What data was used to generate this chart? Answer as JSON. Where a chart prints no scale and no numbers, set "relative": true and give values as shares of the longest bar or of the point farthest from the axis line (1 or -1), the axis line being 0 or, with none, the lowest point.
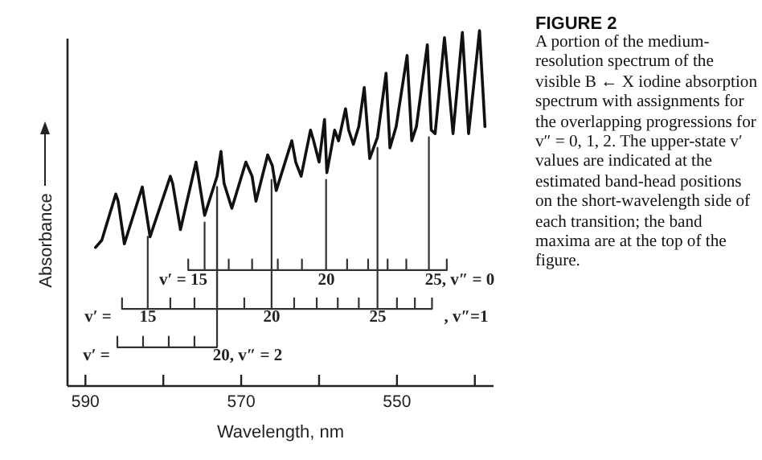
{
  "chart_data": {
    "type": "line",
    "relative": true,
    "title": "FIGURE 2",
    "subtitle": "A portion of the medium-resolution spectrum of the visible B ← X iodine absorption spectrum with assignments for the overlapping progressions for v″ = 0, 1, 2. The upper-state v′ values are indicated at the estimated band-head positions on the short-wavelength side of each transition; the band maxima are at the top of the figure.",
    "xlabel": "Wavelength, nm",
    "ylabel": "Absorbance",
    "xlim": [
      592.3,
      537.6
    ],
    "xticks": [
      590,
      {
        "value": 580,
        "label": null
      },
      570,
      {
        "value": 560,
        "label": null
      },
      550,
      {
        "value": 540,
        "label": null
      }
    ],
    "series": [
      {
        "color": "#111111",
        "x": [
          588.7,
          587.9,
          586.1,
          585.8,
          585.0,
          582.7,
          581.7,
          579.1,
          578.8,
          577.8,
          575.8,
          575.5,
          574.7,
          573.1,
          572.6,
          572.2,
          571.2,
          569.4,
          568.6,
          568.1,
          566.6,
          566.0,
          565.5,
          563.5,
          563.0,
          562.3,
          561.1,
          560.7,
          560.0,
          559.3,
          559.0,
          558.0,
          557.5,
          556.6,
          556.2,
          555.6,
          554.9,
          554.2,
          553.5,
          552.5,
          551.4,
          550.9,
          550.1,
          548.7,
          548.1,
          547.5,
          546.1,
          545.6,
          545.1,
          543.9,
          542.8,
          541.6,
          540.8,
          539.4,
          538.7
        ],
        "values": [
          0.39,
          0.41,
          0.54,
          0.52,
          0.4,
          0.56,
          0.42,
          0.59,
          0.57,
          0.44,
          0.63,
          0.59,
          0.48,
          0.59,
          0.66,
          0.57,
          0.5,
          0.63,
          0.59,
          0.52,
          0.65,
          0.62,
          0.55,
          0.69,
          0.63,
          0.59,
          0.72,
          0.69,
          0.63,
          0.75,
          0.6,
          0.72,
          0.69,
          0.78,
          0.72,
          0.68,
          0.73,
          0.84,
          0.64,
          0.7,
          0.88,
          0.67,
          0.73,
          0.93,
          0.69,
          0.73,
          0.96,
          0.72,
          0.71,
          0.98,
          0.71,
          0.995,
          0.71,
          1.0,
          0.73
        ]
      },
      {
        "color": "#333333",
        "x": [
          576.8,
          576.8,
          576.8,
          574.7,
          574.7,
          574.7,
          571.6,
          571.6,
          571.6,
          568.6,
          568.6,
          568.6,
          565.3,
          565.3,
          565.3,
          562.2,
          562.2,
          562.2,
          559.1,
          559.1,
          559.1,
          556.4,
          556.4,
          556.4,
          553.7,
          553.7,
          553.7,
          551.2,
          551.2,
          551.2,
          548.8,
          548.8,
          548.8,
          545.9,
          545.9,
          545.9,
          543.6,
          543.6,
          543.6
        ],
        "values": [
          0.326,
          0.356,
          0.326,
          0.326,
          0.46,
          0.326,
          0.326,
          0.356,
          0.326,
          0.326,
          0.356,
          0.326,
          0.326,
          0.356,
          0.326,
          0.326,
          0.356,
          0.326,
          0.326,
          0.58,
          0.326,
          0.326,
          0.356,
          0.326,
          0.326,
          0.356,
          0.326,
          0.326,
          0.356,
          0.326,
          0.326,
          0.356,
          0.326,
          0.326,
          0.7,
          0.326,
          0.326,
          0.356,
          0.326
        ]
      },
      {
        "color": "#333333",
        "x": [
          585.3,
          585.3,
          585.3,
          582.0,
          582.0,
          582.0,
          579.1,
          579.1,
          579.1,
          576.0,
          576.0,
          576.0,
          573.1,
          573.1,
          573.1,
          569.6,
          569.6,
          569.6,
          566.1,
          566.1,
          566.1,
          563.2,
          563.2,
          563.2,
          560.3,
          560.3,
          560.3,
          557.6,
          557.6,
          557.6,
          554.9,
          554.9,
          554.9,
          552.5,
          552.5,
          552.5,
          550.0,
          550.0,
          550.0,
          547.7,
          547.7,
          547.7,
          545.5,
          545.5,
          545.5
        ],
        "values": [
          0.217,
          0.247,
          0.217,
          0.217,
          0.42,
          0.217,
          0.217,
          0.247,
          0.217,
          0.217,
          0.247,
          0.217,
          0.217,
          0.56,
          0.217,
          0.217,
          0.247,
          0.217,
          0.217,
          0.58,
          0.217,
          0.217,
          0.247,
          0.217,
          0.217,
          0.247,
          0.217,
          0.217,
          0.247,
          0.217,
          0.217,
          0.247,
          0.217,
          0.217,
          0.67,
          0.217,
          0.217,
          0.247,
          0.217,
          0.217,
          0.247,
          0.217,
          0.217,
          0.247,
          0.217
        ]
      },
      {
        "color": "#333333",
        "x": [
          585.9,
          585.9,
          585.9,
          582.6,
          582.6,
          582.6,
          579.3,
          579.3,
          579.3,
          576.0,
          576.0,
          576.0,
          573.1,
          573.1,
          573.1
        ],
        "values": [
          0.109,
          0.139,
          0.109,
          0.109,
          0.139,
          0.109,
          0.109,
          0.139,
          0.109,
          0.109,
          0.139,
          0.109,
          0.109,
          0.56,
          0.109
        ]
      }
    ],
    "annotations": [
      "v′ = 15",
      "20",
      "25, v″ = 0",
      "v′ =",
      "15",
      "20",
      "25",
      ", v″=1",
      "v′ =",
      "20, v″ = 2"
    ]
  }
}
